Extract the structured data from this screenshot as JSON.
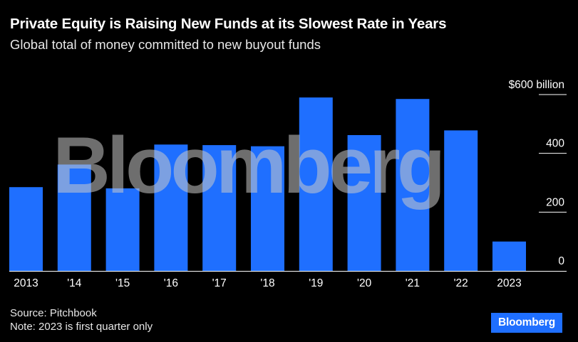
{
  "header": {
    "title": "Private Equity is Raising New Funds at its Slowest Rate in Years",
    "subtitle": "Global total of money committed to new buyout funds"
  },
  "footer": {
    "source": "Source: Pitchbook",
    "note": "Note: 2023 is first quarter only",
    "brand": "Bloomberg"
  },
  "watermark": "Bloomberg",
  "colors": {
    "background": "#000000",
    "bar": "#1f6fff",
    "text": "#ffffff",
    "gridline": "#ffffff"
  },
  "chart_data": {
    "type": "bar",
    "categories": [
      "2013",
      "'14",
      "'15",
      "'16",
      "'17",
      "'18",
      "'19",
      "'20",
      "'21",
      "'22",
      "2023"
    ],
    "values": [
      285,
      362,
      281,
      430,
      428,
      424,
      590,
      462,
      585,
      478,
      100
    ],
    "title": "Private Equity is Raising New Funds at its Slowest Rate in Years",
    "subtitle": "Global total of money committed to new buyout funds",
    "y_ticks": [
      {
        "value": 600,
        "label": "$600 billion"
      },
      {
        "value": 400,
        "label": "400"
      },
      {
        "value": 200,
        "label": "200"
      },
      {
        "value": 0,
        "label": "0"
      }
    ],
    "ylim": [
      0,
      600
    ],
    "axis_position": "right",
    "grid": true
  }
}
